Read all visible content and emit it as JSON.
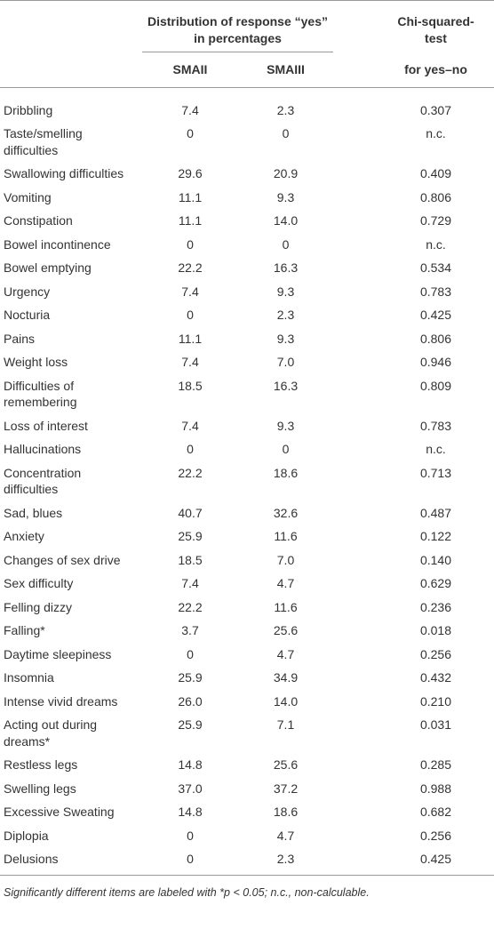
{
  "header": {
    "group": "Distribution of response “yes” in percentages",
    "test": "Chi-squared-test",
    "sub": [
      "SMAII",
      "SMAIII",
      "for yes–no"
    ]
  },
  "table": {
    "rows": [
      [
        "Dribbling",
        "7.4",
        "2.3",
        "0.307"
      ],
      [
        "Taste/smelling difficulties",
        "0",
        "0",
        "n.c."
      ],
      [
        "Swallowing difficulties",
        "29.6",
        "20.9",
        "0.409"
      ],
      [
        "Vomiting",
        "11.1",
        "9.3",
        "0.806"
      ],
      [
        "Constipation",
        "11.1",
        "14.0",
        "0.729"
      ],
      [
        "Bowel incontinence",
        "0",
        "0",
        "n.c."
      ],
      [
        "Bowel emptying",
        "22.2",
        "16.3",
        "0.534"
      ],
      [
        "Urgency",
        "7.4",
        "9.3",
        "0.783"
      ],
      [
        "Nocturia",
        "0",
        "2.3",
        "0.425"
      ],
      [
        "Pains",
        "11.1",
        "9.3",
        "0.806"
      ],
      [
        "Weight loss",
        "7.4",
        "7.0",
        "0.946"
      ],
      [
        "Difficulties of remembering",
        "18.5",
        "16.3",
        "0.809"
      ],
      [
        "Loss of interest",
        "7.4",
        "9.3",
        "0.783"
      ],
      [
        "Hallucinations",
        "0",
        "0",
        "n.c."
      ],
      [
        "Concentration difficulties",
        "22.2",
        "18.6",
        "0.713"
      ],
      [
        "Sad, blues",
        "40.7",
        "32.6",
        "0.487"
      ],
      [
        "Anxiety",
        "25.9",
        "11.6",
        "0.122"
      ],
      [
        "Changes of sex drive",
        "18.5",
        "7.0",
        "0.140"
      ],
      [
        "Sex difficulty",
        "7.4",
        "4.7",
        "0.629"
      ],
      [
        "Felling dizzy",
        "22.2",
        "11.6",
        "0.236"
      ],
      [
        "Falling*",
        "3.7",
        "25.6",
        "0.018"
      ],
      [
        "Daytime sleepiness",
        "0",
        "4.7",
        "0.256"
      ],
      [
        "Insomnia",
        "25.9",
        "34.9",
        "0.432"
      ],
      [
        "Intense vivid dreams",
        "26.0",
        "14.0",
        "0.210"
      ],
      [
        "Acting out during dreams*",
        "25.9",
        "7.1",
        "0.031"
      ],
      [
        "Restless legs",
        "14.8",
        "25.6",
        "0.285"
      ],
      [
        "Swelling legs",
        "37.0",
        "37.2",
        "0.988"
      ],
      [
        "Excessive Sweating",
        "14.8",
        "18.6",
        "0.682"
      ],
      [
        "Diplopia",
        "0",
        "4.7",
        "0.256"
      ],
      [
        "Delusions",
        "0",
        "2.3",
        "0.425"
      ]
    ]
  },
  "footnote": "Significantly different items are labeled with *p < 0.05; n.c., non-calculable."
}
